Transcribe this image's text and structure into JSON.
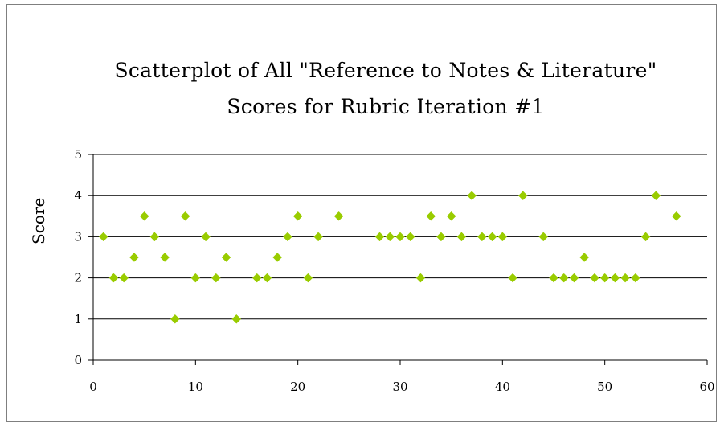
{
  "chart_data": {
    "type": "scatter",
    "title_line1": "Scatterplot of All \"Reference to Notes & Literature\"",
    "title_line2": "Scores for Rubric Iteration #1",
    "xlabel": "",
    "ylabel": "Score",
    "xlim": [
      0,
      60
    ],
    "ylim": [
      0,
      5
    ],
    "x_ticks": [
      "0",
      "10",
      "20",
      "30",
      "40",
      "50",
      "60"
    ],
    "y_ticks": [
      "0",
      "1",
      "2",
      "3",
      "4",
      "5"
    ],
    "grid": "horizontal",
    "marker_color": "#99cc00",
    "points": [
      {
        "x": 1,
        "y": 3
      },
      {
        "x": 2,
        "y": 2
      },
      {
        "x": 3,
        "y": 2
      },
      {
        "x": 4,
        "y": 2.5
      },
      {
        "x": 5,
        "y": 3.5
      },
      {
        "x": 6,
        "y": 3
      },
      {
        "x": 7,
        "y": 2.5
      },
      {
        "x": 8,
        "y": 1
      },
      {
        "x": 9,
        "y": 3.5
      },
      {
        "x": 10,
        "y": 2
      },
      {
        "x": 11,
        "y": 3
      },
      {
        "x": 12,
        "y": 2
      },
      {
        "x": 13,
        "y": 2.5
      },
      {
        "x": 14,
        "y": 1
      },
      {
        "x": 16,
        "y": 2
      },
      {
        "x": 17,
        "y": 2
      },
      {
        "x": 18,
        "y": 2.5
      },
      {
        "x": 19,
        "y": 3
      },
      {
        "x": 20,
        "y": 3.5
      },
      {
        "x": 21,
        "y": 2
      },
      {
        "x": 22,
        "y": 3
      },
      {
        "x": 24,
        "y": 3.5
      },
      {
        "x": 28,
        "y": 3
      },
      {
        "x": 29,
        "y": 3
      },
      {
        "x": 30,
        "y": 3
      },
      {
        "x": 31,
        "y": 3
      },
      {
        "x": 32,
        "y": 2
      },
      {
        "x": 33,
        "y": 3.5
      },
      {
        "x": 34,
        "y": 3
      },
      {
        "x": 35,
        "y": 3.5
      },
      {
        "x": 36,
        "y": 3
      },
      {
        "x": 37,
        "y": 4
      },
      {
        "x": 38,
        "y": 3
      },
      {
        "x": 39,
        "y": 3
      },
      {
        "x": 40,
        "y": 3
      },
      {
        "x": 41,
        "y": 2
      },
      {
        "x": 42,
        "y": 4
      },
      {
        "x": 44,
        "y": 3
      },
      {
        "x": 45,
        "y": 2
      },
      {
        "x": 46,
        "y": 2
      },
      {
        "x": 47,
        "y": 2
      },
      {
        "x": 48,
        "y": 2.5
      },
      {
        "x": 49,
        "y": 2
      },
      {
        "x": 50,
        "y": 2
      },
      {
        "x": 51,
        "y": 2
      },
      {
        "x": 52,
        "y": 2
      },
      {
        "x": 53,
        "y": 2
      },
      {
        "x": 54,
        "y": 3
      },
      {
        "x": 55,
        "y": 4
      },
      {
        "x": 57,
        "y": 3.5
      }
    ]
  }
}
